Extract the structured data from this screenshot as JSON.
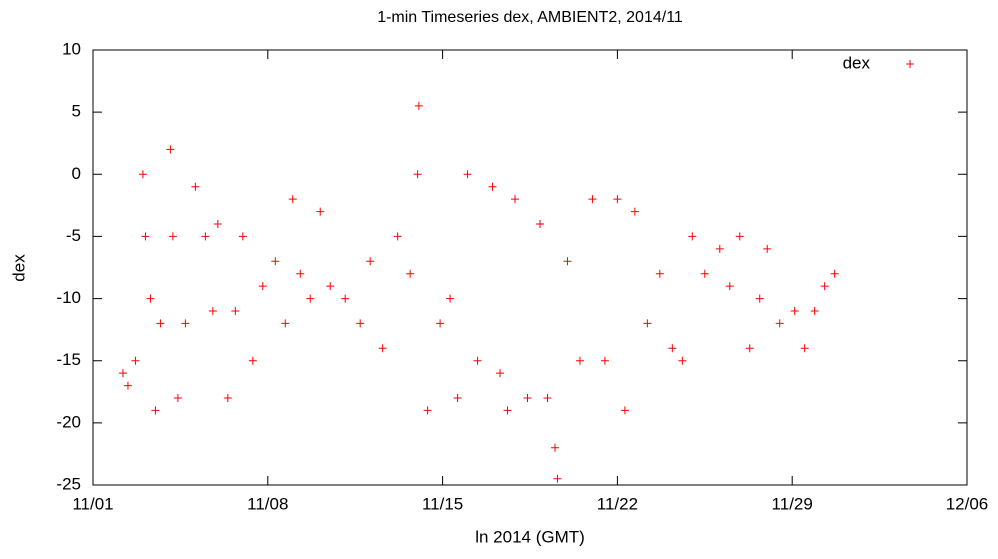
{
  "chart_data": {
    "type": "scatter",
    "title": "1-min Timeseries dex, AMBIENT2, 2014/11",
    "xlabel": "ln 2014 (GMT)",
    "ylabel": "dex",
    "legend": "top-right",
    "series": [
      {
        "name": "dex",
        "color": "#ff0000",
        "x": [
          1.2,
          1.4,
          1.7,
          2.0,
          2.1,
          2.3,
          2.5,
          2.7,
          3.1,
          3.2,
          3.4,
          3.7,
          4.1,
          4.5,
          4.8,
          5.0,
          5.4,
          5.7,
          6.0,
          6.4,
          6.8,
          7.3,
          7.7,
          8.0,
          8.3,
          8.7,
          9.1,
          9.5,
          10.1,
          10.7,
          11.1,
          11.6,
          12.2,
          12.7,
          13.0,
          13.05,
          13.4,
          13.9,
          14.3,
          14.6,
          15.0,
          15.4,
          16.0,
          16.3,
          16.6,
          16.9,
          17.4,
          17.9,
          18.2,
          18.5,
          18.6,
          19.0,
          19.5,
          20.0,
          20.5,
          21.0,
          21.3,
          21.7,
          22.2,
          22.7,
          23.2,
          23.6,
          24.0,
          24.5,
          25.1,
          25.5,
          25.9,
          26.3,
          26.7,
          27.0,
          27.5,
          28.1,
          28.5,
          28.9,
          29.3,
          29.7
        ],
        "values": [
          -16,
          -17,
          -15,
          0,
          -5,
          -10,
          -19,
          -12,
          2,
          -5,
          -18,
          -12,
          -1,
          -5,
          -11,
          -4,
          -18,
          -11,
          -5,
          -15,
          -9,
          -7,
          -12,
          -2,
          -8,
          -10,
          -3,
          -9,
          -10,
          -12,
          -7,
          -14,
          -5,
          -8,
          0,
          5.5,
          -19,
          -12,
          -10,
          -18,
          0,
          -15,
          -1,
          -16,
          -19,
          -2,
          -18,
          -4,
          -18,
          -22,
          -24.5,
          -7,
          -15,
          -2,
          -15,
          -2,
          -19,
          -3,
          -12,
          -8,
          -14,
          -15,
          -5,
          -8,
          -6,
          -9,
          -5,
          -14,
          -10,
          -6,
          -12,
          -11,
          -14,
          -11,
          -9,
          -8
        ]
      }
    ],
    "xlim": [
      0,
      35
    ],
    "xticks": [
      {
        "value": 0,
        "label": "11/01"
      },
      {
        "value": 7,
        "label": "11/08"
      },
      {
        "value": 14,
        "label": "11/15"
      },
      {
        "value": 21,
        "label": "11/22"
      },
      {
        "value": 28,
        "label": "11/29"
      },
      {
        "value": 35,
        "label": "12/06"
      }
    ],
    "ylim": [
      -25,
      10
    ],
    "yticks": [
      -25,
      -20,
      -15,
      -10,
      -5,
      0,
      5,
      10
    ]
  }
}
